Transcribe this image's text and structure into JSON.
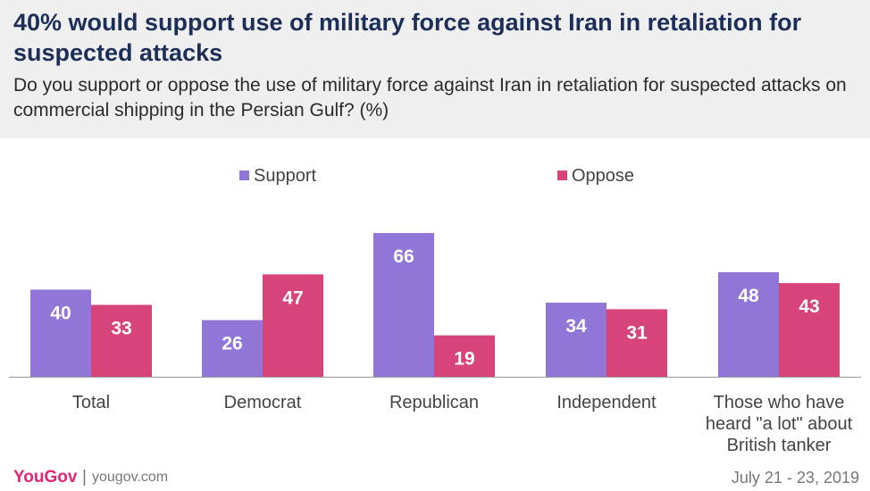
{
  "title": "40% would support use of military force against Iran in retaliation for suspected attacks",
  "subtitle": "Do you support or oppose the use of military force against Iran in retaliation for suspected attacks on commercial shipping in the Persian Gulf? (%)",
  "colors": {
    "support": "#9076d6",
    "oppose": "#d6447a",
    "header_bg": "#efefef",
    "title": "#1d2f59",
    "brand": "#e5256f"
  },
  "chart_data": {
    "type": "bar",
    "categories": [
      [
        "Total"
      ],
      [
        "Democrat"
      ],
      [
        "Republican"
      ],
      [
        "Independent"
      ],
      [
        "Those who have",
        "heard \"a lot\" about",
        "British tanker"
      ]
    ],
    "series": [
      {
        "name": "Support",
        "values": [
          40,
          26,
          66,
          34,
          48
        ]
      },
      {
        "name": "Oppose",
        "values": [
          33,
          47,
          19,
          31,
          43
        ]
      }
    ],
    "legend_position": "top",
    "ylim": [
      0,
      66
    ],
    "grid": false
  },
  "footer": {
    "logo": "YouGov",
    "separator": "|",
    "url": "yougov.com",
    "date": "July 21 - 23, 2019"
  }
}
